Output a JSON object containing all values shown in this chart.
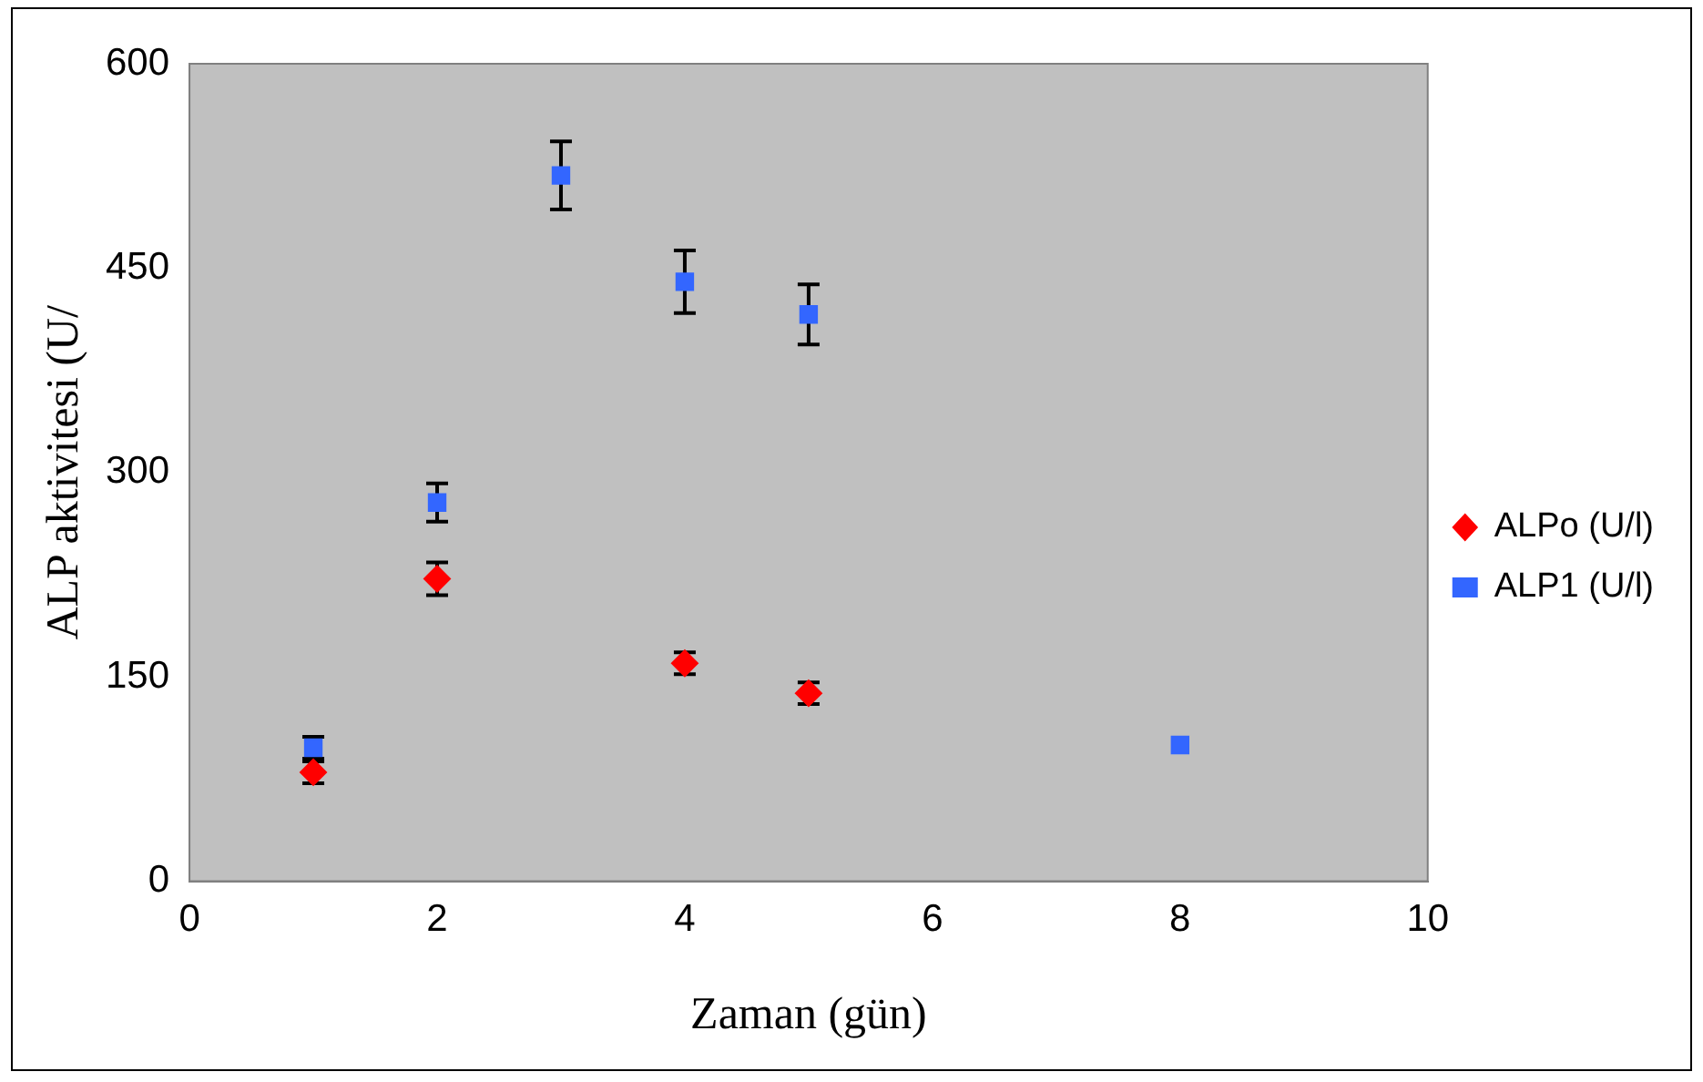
{
  "chart_data": {
    "type": "scatter",
    "xlabel": "Zaman (gün)",
    "ylabel": "ALP aktivitesi (U/",
    "xlim": [
      0,
      10
    ],
    "xticks": [
      0,
      2,
      4,
      6,
      8,
      10
    ],
    "ylim": [
      0,
      600
    ],
    "yticks": [
      0,
      150,
      300,
      450,
      600
    ],
    "grid": false,
    "legend": "right",
    "series": [
      {
        "name": "ALPo (U/l)",
        "color": "#ff0000",
        "marker": "diamond",
        "x": [
          1,
          2,
          4,
          5
        ],
        "values": [
          80,
          222,
          160,
          138
        ],
        "errors": [
          8,
          12,
          8,
          8
        ]
      },
      {
        "name": "ALP1 (U/l)",
        "color": "#3366ff",
        "marker": "square",
        "x": [
          1,
          2,
          3,
          4,
          5,
          8
        ],
        "values": [
          98,
          278,
          518,
          440,
          416,
          100
        ],
        "errors": [
          8,
          14,
          25,
          23,
          22,
          null
        ]
      }
    ]
  }
}
